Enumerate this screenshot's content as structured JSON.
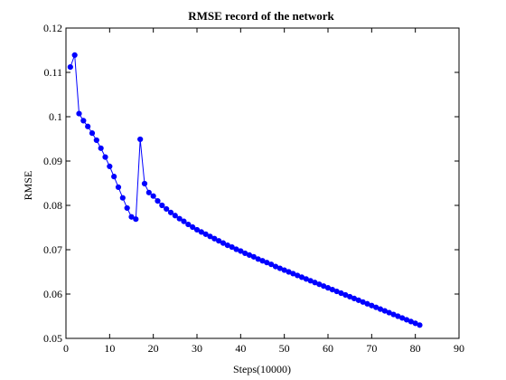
{
  "chart_data": {
    "type": "line",
    "title": "RMSE record of the network",
    "xlabel": "Steps(10000)",
    "ylabel": "RMSE",
    "xlim": [
      0,
      90
    ],
    "ylim": [
      0.05,
      0.12
    ],
    "xticks": [
      0,
      10,
      20,
      30,
      40,
      50,
      60,
      70,
      80,
      90
    ],
    "yticks": [
      0.05,
      0.06,
      0.07,
      0.08,
      0.09,
      0.1,
      0.11,
      0.12
    ],
    "xtick_labels": [
      "0",
      "10",
      "20",
      "30",
      "40",
      "50",
      "60",
      "70",
      "80",
      "90"
    ],
    "ytick_labels": [
      "0.05",
      "0.06",
      "0.07",
      "0.08",
      "0.09",
      "0.1",
      "0.11",
      "0.12"
    ],
    "grid": false,
    "legend": false,
    "series": [
      {
        "color": "#0000ff",
        "marker": "circle",
        "x": [
          1,
          2,
          3,
          4,
          5,
          6,
          7,
          8,
          9,
          10,
          11,
          12,
          13,
          14,
          15,
          16,
          17,
          18,
          19,
          20,
          21,
          22,
          23,
          24,
          25,
          26,
          27,
          28,
          29,
          30,
          31,
          32,
          33,
          34,
          35,
          36,
          37,
          38,
          39,
          40,
          41,
          42,
          43,
          44,
          45,
          46,
          47,
          48,
          49,
          50,
          51,
          52,
          53,
          54,
          55,
          56,
          57,
          58,
          59,
          60,
          61,
          62,
          63,
          64,
          65,
          66,
          67,
          68,
          69,
          70,
          71,
          72,
          73,
          74,
          75,
          76,
          77,
          78,
          79,
          80,
          81
        ],
        "y": [
          0.1112,
          0.1139,
          0.1007,
          0.0991,
          0.0978,
          0.0963,
          0.0947,
          0.0929,
          0.0909,
          0.0888,
          0.0865,
          0.0841,
          0.0817,
          0.0794,
          0.0774,
          0.0769,
          0.0949,
          0.0849,
          0.0829,
          0.0821,
          0.081,
          0.08,
          0.0792,
          0.0784,
          0.0777,
          0.077,
          0.0764,
          0.0757,
          0.0751,
          0.0745,
          0.074,
          0.0735,
          0.073,
          0.0725,
          0.072,
          0.0715,
          0.071,
          0.0706,
          0.0701,
          0.0697,
          0.0692,
          0.0688,
          0.0684,
          0.0679,
          0.0675,
          0.0671,
          0.0667,
          0.0662,
          0.0658,
          0.0654,
          0.065,
          0.0646,
          0.0642,
          0.0638,
          0.0634,
          0.063,
          0.0626,
          0.0622,
          0.0618,
          0.0614,
          0.061,
          0.0606,
          0.0602,
          0.0598,
          0.0594,
          0.059,
          0.0586,
          0.0582,
          0.0578,
          0.0574,
          0.057,
          0.0566,
          0.0562,
          0.0558,
          0.0554,
          0.055,
          0.0546,
          0.0542,
          0.0538,
          0.0534,
          0.053
        ]
      }
    ]
  }
}
